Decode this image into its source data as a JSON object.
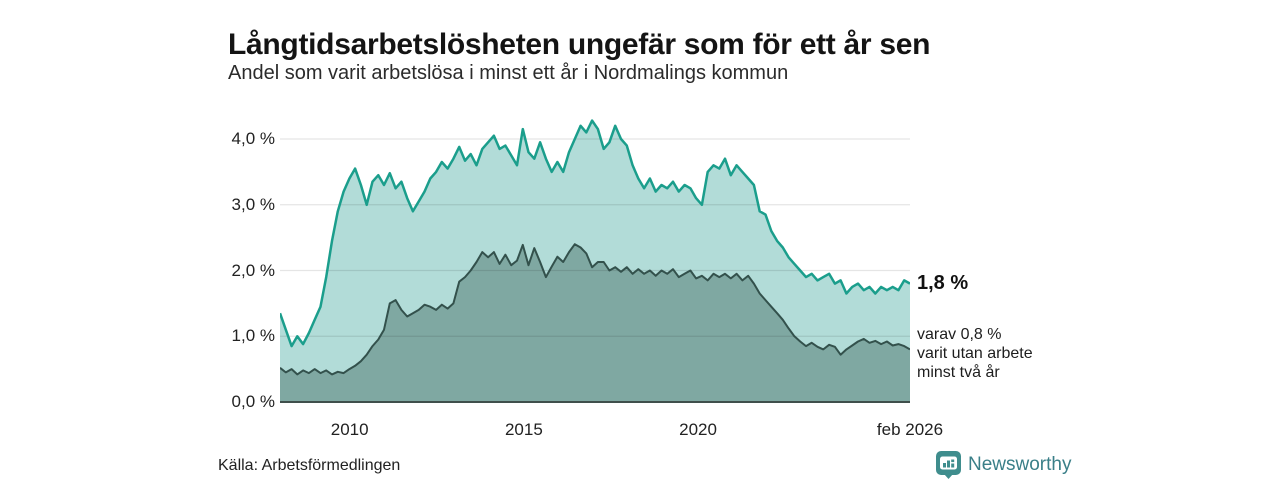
{
  "header": {
    "title": "Långtidsarbetslösheten ungefär som för ett år sen",
    "subtitle": "Andel som varit arbetslösa i minst ett år i Nordmalings kommun"
  },
  "annotations": {
    "latest_value": "1,8 %",
    "detail_line1": "varav 0,8 %",
    "detail_line2": "varit utan arbete",
    "detail_line3": "minst två år"
  },
  "footer": {
    "source": "Källa: Arbetsförmedlingen",
    "brand": "Newsworthy",
    "brand_icon": "bar-chart-speech-bubble-icon"
  },
  "colors": {
    "title_text": "#141414",
    "body_text": "#222222",
    "brand_teal": "#3f8d8d",
    "brand_wordmark": "#3a7f88"
  },
  "chart_data": {
    "type": "area",
    "title": "Långtidsarbetslösheten ungefär som för ett år sen",
    "subtitle": "Andel som varit arbetslösa i minst ett år i Nordmalings kommun",
    "x_unit": "year",
    "x_start": 2008.0,
    "x_end": 2026.083,
    "point_interval": "2 months",
    "ylim": [
      0,
      4.5
    ],
    "grid": "rgba(0,0,0,0.10)",
    "axis_color": "#3f4f4c",
    "y_ticks": [
      {
        "label": "0,0 %",
        "value": 0
      },
      {
        "label": "1,0 %",
        "value": 1
      },
      {
        "label": "2,0 %",
        "value": 2
      },
      {
        "label": "3,0 %",
        "value": 3
      },
      {
        "label": "4,0 %",
        "value": 4
      }
    ],
    "x_ticks": [
      {
        "label": "2010",
        "x": 2010
      },
      {
        "label": "2015",
        "x": 2015
      },
      {
        "label": "2020",
        "x": 2020
      },
      {
        "label": "feb 2026",
        "x": 2026.083
      }
    ],
    "series": [
      {
        "key": "unemployed-one-year",
        "name": "Arbetslösa minst ett år",
        "latest_label": "1,8 %",
        "color": "#1b9e8c",
        "fill": "#b2dcd8",
        "stroke_width": 2.5,
        "values": [
          1.35,
          1.1,
          0.85,
          1.0,
          0.88,
          1.05,
          1.25,
          1.45,
          1.9,
          2.45,
          2.9,
          3.2,
          3.4,
          3.55,
          3.3,
          3.0,
          3.35,
          3.45,
          3.3,
          3.48,
          3.25,
          3.35,
          3.1,
          2.9,
          3.05,
          3.2,
          3.4,
          3.5,
          3.65,
          3.55,
          3.7,
          3.88,
          3.67,
          3.77,
          3.6,
          3.85,
          3.95,
          4.05,
          3.85,
          3.9,
          3.75,
          3.6,
          4.15,
          3.8,
          3.7,
          3.95,
          3.7,
          3.5,
          3.65,
          3.5,
          3.8,
          4.0,
          4.2,
          4.1,
          4.28,
          4.15,
          3.85,
          3.95,
          4.2,
          4.0,
          3.9,
          3.6,
          3.4,
          3.25,
          3.4,
          3.2,
          3.3,
          3.25,
          3.35,
          3.2,
          3.3,
          3.25,
          3.1,
          3.0,
          3.5,
          3.6,
          3.55,
          3.7,
          3.45,
          3.6,
          3.5,
          3.4,
          3.3,
          2.9,
          2.85,
          2.6,
          2.45,
          2.35,
          2.2,
          2.1,
          2.0,
          1.9,
          1.95,
          1.85,
          1.9,
          1.95,
          1.8,
          1.85,
          1.65,
          1.75,
          1.8,
          1.7,
          1.75,
          1.65,
          1.75,
          1.7,
          1.75,
          1.7,
          1.85,
          1.8
        ]
      },
      {
        "key": "unemployed-two-years",
        "name": "Arbetslösa minst två år",
        "latest_label": "0,8 %",
        "color": "#33514c",
        "fill": "#7fa8a2",
        "stroke_width": 2,
        "values": [
          0.52,
          0.45,
          0.5,
          0.42,
          0.48,
          0.44,
          0.5,
          0.44,
          0.48,
          0.42,
          0.46,
          0.44,
          0.5,
          0.55,
          0.62,
          0.72,
          0.85,
          0.95,
          1.1,
          1.5,
          1.55,
          1.4,
          1.3,
          1.35,
          1.4,
          1.48,
          1.45,
          1.4,
          1.48,
          1.42,
          1.5,
          1.83,
          1.9,
          2.0,
          2.13,
          2.28,
          2.2,
          2.28,
          2.1,
          2.24,
          2.08,
          2.15,
          2.39,
          2.08,
          2.34,
          2.13,
          1.9,
          2.06,
          2.21,
          2.13,
          2.28,
          2.4,
          2.35,
          2.26,
          2.05,
          2.13,
          2.13,
          2.0,
          2.05,
          1.98,
          2.05,
          1.95,
          2.02,
          1.95,
          2.0,
          1.92,
          2.0,
          1.95,
          2.02,
          1.9,
          1.95,
          2.0,
          1.88,
          1.92,
          1.85,
          1.95,
          1.9,
          1.95,
          1.88,
          1.95,
          1.85,
          1.92,
          1.8,
          1.65,
          1.55,
          1.45,
          1.35,
          1.25,
          1.12,
          1.0,
          0.92,
          0.85,
          0.9,
          0.84,
          0.8,
          0.87,
          0.84,
          0.72,
          0.8,
          0.86,
          0.92,
          0.96,
          0.9,
          0.93,
          0.88,
          0.92,
          0.86,
          0.88,
          0.85,
          0.8
        ]
      }
    ]
  }
}
